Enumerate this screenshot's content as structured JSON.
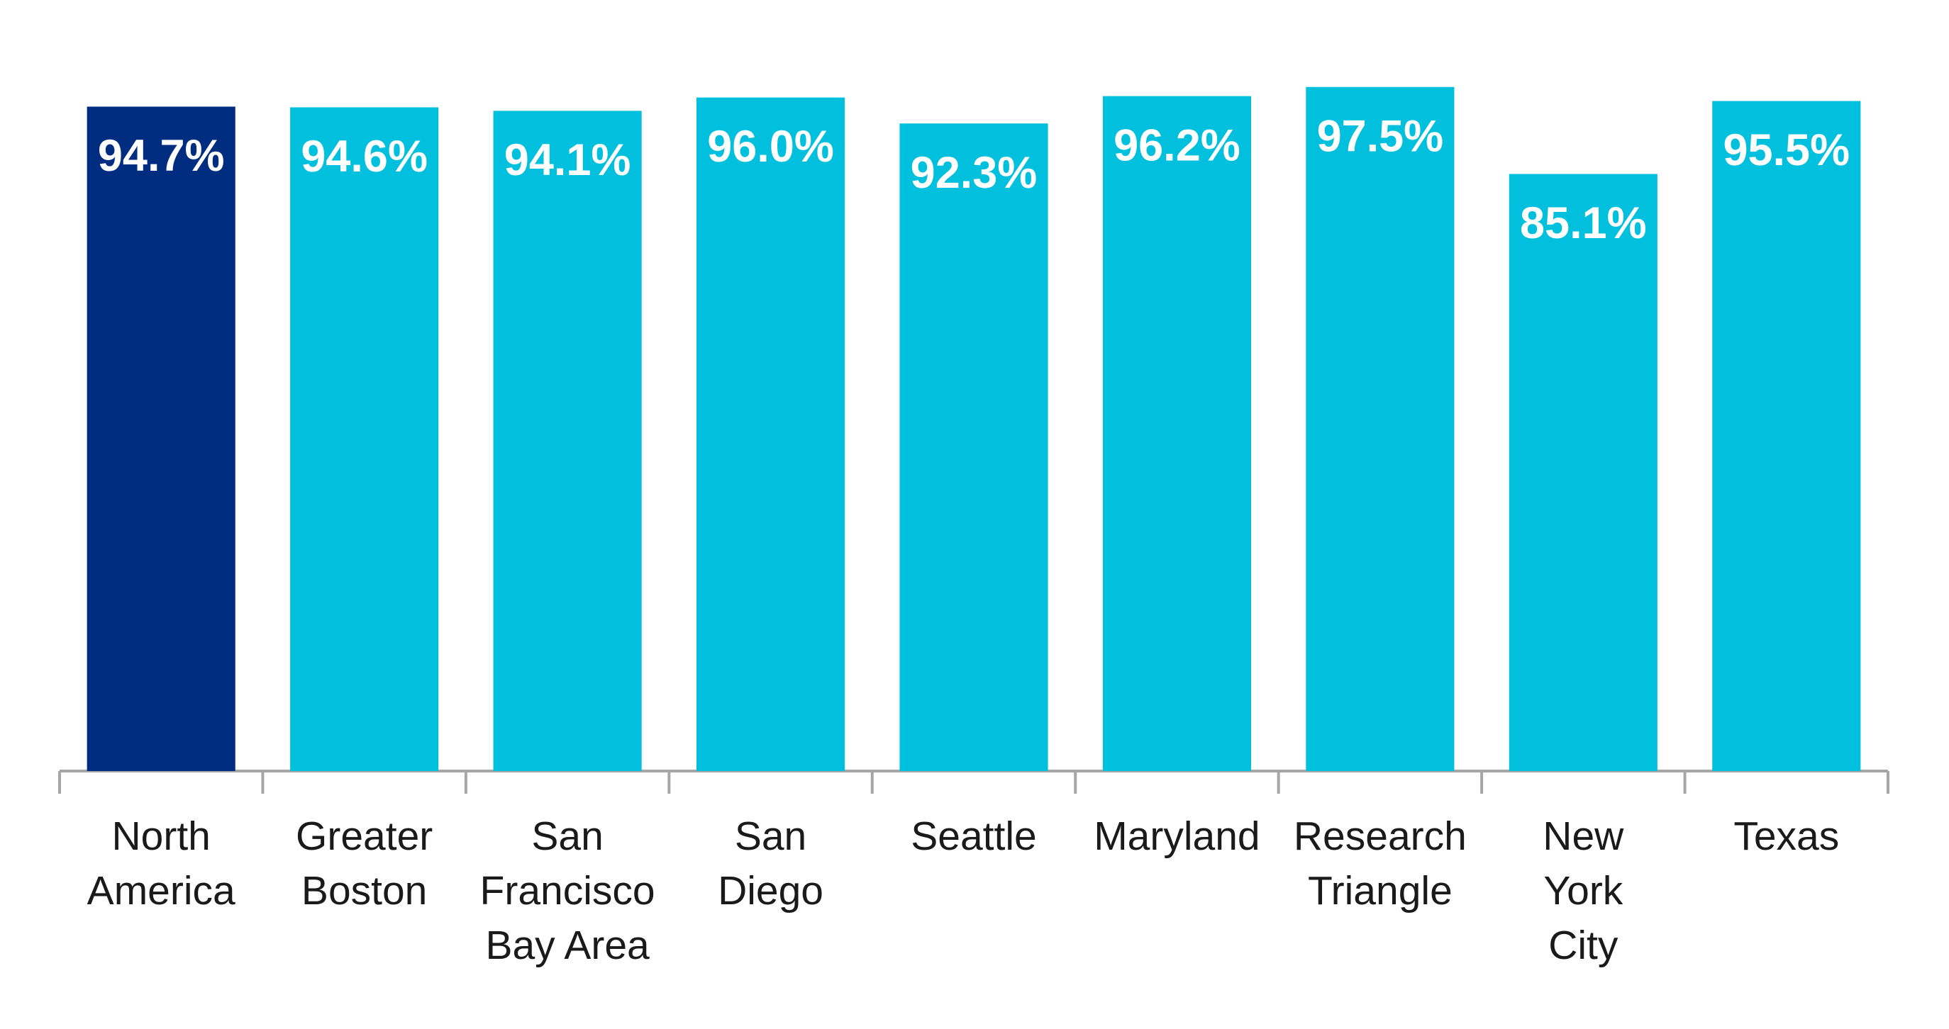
{
  "chart_data": {
    "type": "bar",
    "categories": [
      "North\nAmerica",
      "Greater\nBoston",
      "San\nFrancisco\nBay Area",
      "San\nDiego",
      "Seattle",
      "Maryland",
      "Research\nTriangle",
      "New\nYork\nCity",
      "Texas"
    ],
    "values": [
      94.7,
      94.6,
      94.1,
      96.0,
      92.3,
      96.2,
      97.5,
      85.1,
      95.5
    ],
    "value_labels": [
      "94.7%",
      "94.6%",
      "94.1%",
      "96.0%",
      "92.3%",
      "96.2%",
      "97.5%",
      "85.1%",
      "95.5%"
    ],
    "colors": [
      "#002d7f",
      "#00c0de",
      "#00c0de",
      "#00c0de",
      "#00c0de",
      "#00c0de",
      "#00c0de",
      "#00c0de",
      "#00c0de"
    ],
    "ylim": [
      0,
      100
    ]
  }
}
